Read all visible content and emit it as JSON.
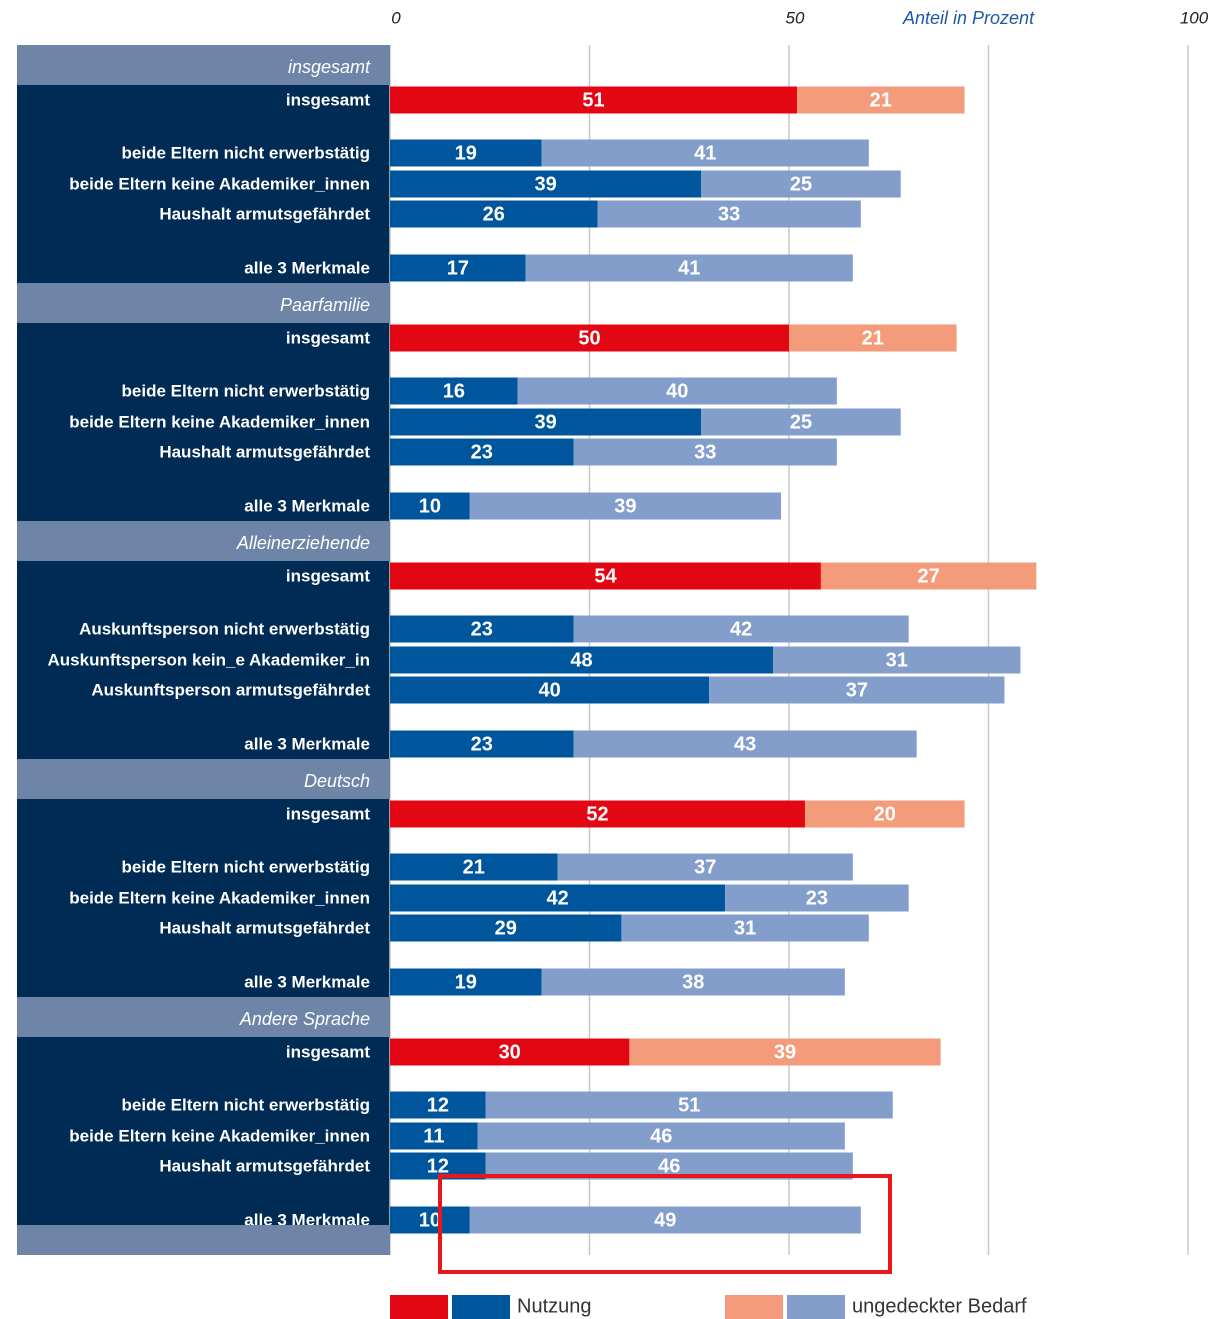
{
  "chart_data": {
    "type": "bar",
    "orientation": "horizontal",
    "stacked": true,
    "xlabel": "Anteil in Prozent",
    "xlim": [
      0,
      100
    ],
    "xticks": [
      0,
      50,
      100
    ],
    "xminorticks": [
      25,
      75
    ],
    "grid": true,
    "series": [
      {
        "name": "Nutzung",
        "colors": [
          "#e30613",
          "#00569c"
        ]
      },
      {
        "name": "ungedeckter Bedarf",
        "colors": [
          "#f39b7b",
          "#839ecb"
        ]
      }
    ],
    "groups": [
      {
        "name": "insgesamt",
        "categories": [
          "insgesamt",
          "beide Eltern nicht erwerbstätig",
          "beide Eltern keine Akademiker_innen",
          "Haushalt armutsgefährdet",
          "alle 3 Merkmale"
        ],
        "values": [
          [
            51,
            19,
            39,
            26,
            17
          ],
          [
            21,
            41,
            25,
            33,
            41
          ]
        ]
      },
      {
        "name": "Paarfamilie",
        "categories": [
          "insgesamt",
          "beide Eltern nicht erwerbstätig",
          "beide Eltern keine Akademiker_innen",
          "Haushalt armutsgefährdet",
          "alle 3 Merkmale"
        ],
        "values": [
          [
            50,
            16,
            39,
            23,
            10
          ],
          [
            21,
            40,
            25,
            33,
            39
          ]
        ]
      },
      {
        "name": "Alleinerziehende",
        "categories": [
          "insgesamt",
          "Auskunftsperson nicht erwerbstätig",
          "Auskunftsperson kein_e Akademiker_in",
          "Auskunftsperson armutsgefährdet",
          "alle 3 Merkmale"
        ],
        "values": [
          [
            54,
            23,
            48,
            40,
            23
          ],
          [
            27,
            42,
            31,
            37,
            43
          ]
        ]
      },
      {
        "name": "Deutsch",
        "categories": [
          "insgesamt",
          "beide Eltern nicht erwerbstätig",
          "beide Eltern keine Akademiker_innen",
          "Haushalt armutsgefährdet",
          "alle 3 Merkmale"
        ],
        "values": [
          [
            52,
            21,
            42,
            29,
            19
          ],
          [
            20,
            37,
            23,
            31,
            38
          ]
        ]
      },
      {
        "name": "Andere Sprache",
        "categories": [
          "insgesamt",
          "beide Eltern nicht erwerbstätig",
          "beide Eltern keine Akademiker_innen",
          "Haushalt armutsgefährdet",
          "alle 3 Merkmale"
        ],
        "values": [
          [
            30,
            12,
            11,
            12,
            10
          ],
          [
            39,
            51,
            46,
            46,
            49
          ]
        ]
      }
    ]
  }
}
